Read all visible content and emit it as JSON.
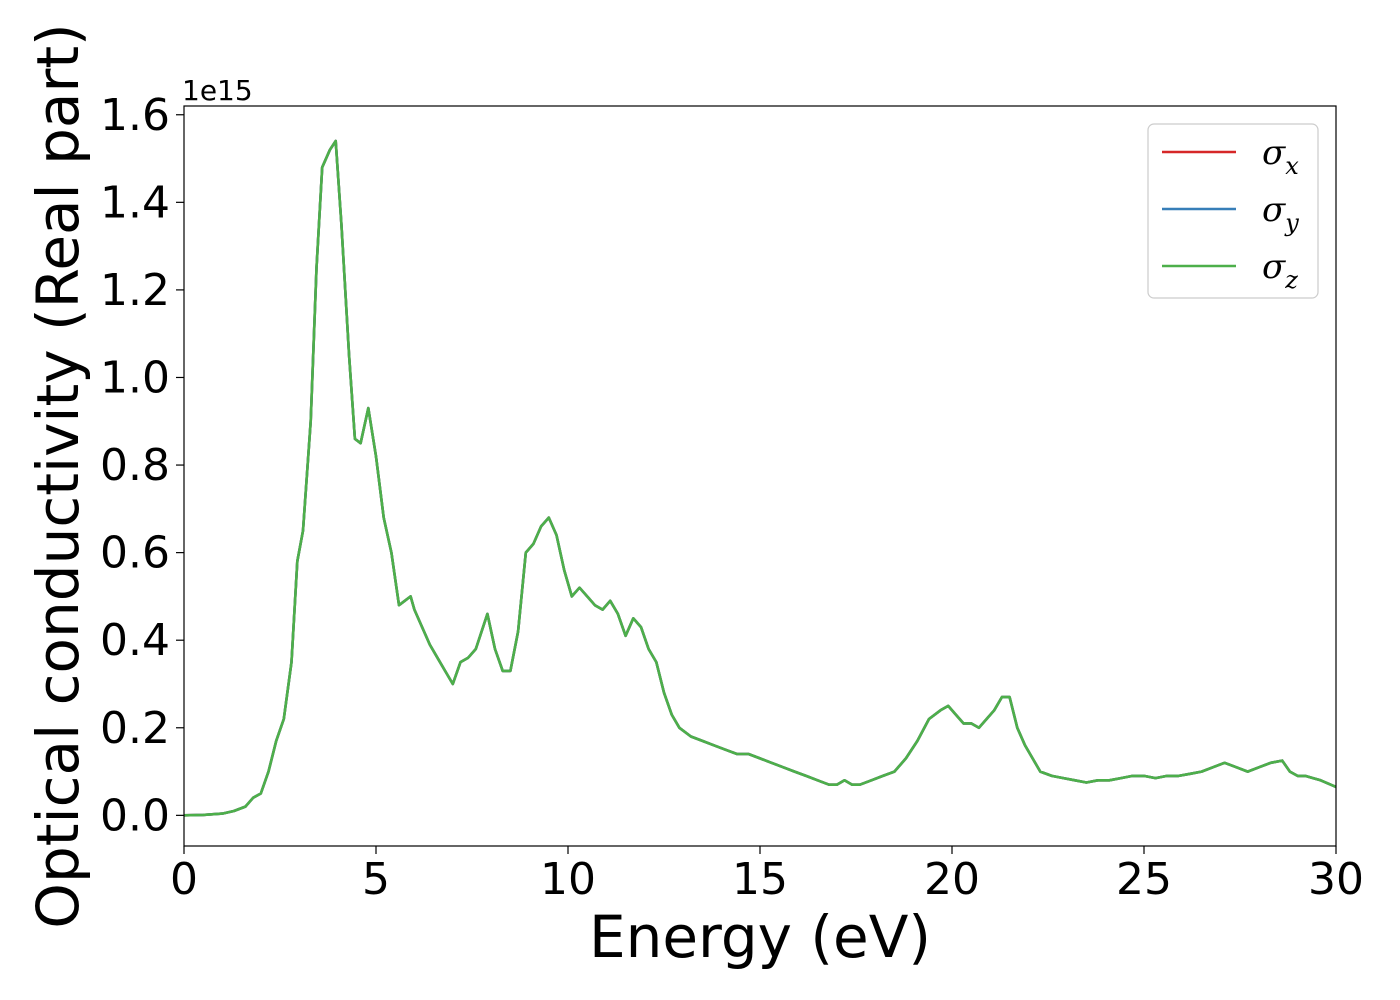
{
  "chart_data": {
    "type": "line",
    "title": "",
    "xlabel": "Energy (eV)",
    "ylabel": "Optical conductivity (Real part)",
    "offset_text": "1e15",
    "y_scale_factor": 1000000000000000.0,
    "xlim": [
      0,
      30
    ],
    "ylim": [
      -0.07,
      1.62
    ],
    "x_ticks": [
      0,
      5,
      10,
      15,
      20,
      25,
      30
    ],
    "x_tick_labels": [
      "0",
      "5",
      "10",
      "15",
      "20",
      "25",
      "30"
    ],
    "y_ticks": [
      0.0,
      0.2,
      0.4,
      0.6,
      0.8,
      1.0,
      1.2,
      1.4,
      1.6
    ],
    "y_tick_labels": [
      "0.0",
      "0.2",
      "0.4",
      "0.6",
      "0.8",
      "1.0",
      "1.2",
      "1.4",
      "1.6"
    ],
    "grid": false,
    "legend": {
      "position": "top-right",
      "entries": [
        {
          "symbol": "σ",
          "sub": "x",
          "color": "#d62728"
        },
        {
          "symbol": "σ",
          "sub": "y",
          "color": "#377eb8"
        },
        {
          "symbol": "σ",
          "sub": "z",
          "color": "#4daf4a"
        }
      ]
    },
    "x": [
      0,
      0.5,
      1.0,
      1.3,
      1.6,
      1.8,
      2.0,
      2.2,
      2.4,
      2.6,
      2.8,
      2.95,
      3.1,
      3.3,
      3.45,
      3.6,
      3.8,
      3.95,
      4.1,
      4.3,
      4.45,
      4.6,
      4.8,
      5.0,
      5.2,
      5.4,
      5.6,
      5.75,
      5.9,
      6.0,
      6.2,
      6.4,
      6.6,
      6.8,
      7.0,
      7.2,
      7.4,
      7.6,
      7.9,
      8.1,
      8.3,
      8.5,
      8.7,
      8.9,
      9.1,
      9.3,
      9.5,
      9.7,
      9.9,
      10.1,
      10.3,
      10.5,
      10.7,
      10.9,
      11.1,
      11.3,
      11.5,
      11.7,
      11.9,
      12.1,
      12.3,
      12.5,
      12.7,
      12.9,
      13.2,
      13.5,
      13.8,
      14.1,
      14.4,
      14.7,
      15.0,
      15.3,
      15.6,
      15.9,
      16.2,
      16.5,
      16.8,
      17.0,
      17.2,
      17.4,
      17.6,
      17.9,
      18.2,
      18.5,
      18.8,
      19.1,
      19.4,
      19.7,
      19.9,
      20.1,
      20.3,
      20.5,
      20.7,
      20.9,
      21.1,
      21.3,
      21.5,
      21.7,
      21.9,
      22.1,
      22.3,
      22.6,
      22.9,
      23.2,
      23.5,
      23.8,
      24.1,
      24.4,
      24.7,
      25.0,
      25.3,
      25.6,
      25.9,
      26.2,
      26.5,
      26.8,
      27.1,
      27.4,
      27.7,
      28.0,
      28.3,
      28.6,
      28.8,
      29.0,
      29.2,
      29.4,
      29.6,
      30.0
    ],
    "series": [
      {
        "name": "σ_x",
        "color": "#d62728",
        "values": [
          0.0,
          0.001,
          0.004,
          0.01,
          0.02,
          0.04,
          0.05,
          0.1,
          0.17,
          0.22,
          0.35,
          0.58,
          0.65,
          0.9,
          1.25,
          1.48,
          1.52,
          1.54,
          1.35,
          1.05,
          0.86,
          0.85,
          0.93,
          0.82,
          0.68,
          0.6,
          0.48,
          0.49,
          0.5,
          0.47,
          0.43,
          0.39,
          0.36,
          0.33,
          0.3,
          0.35,
          0.36,
          0.38,
          0.46,
          0.38,
          0.33,
          0.33,
          0.42,
          0.6,
          0.62,
          0.66,
          0.68,
          0.64,
          0.56,
          0.5,
          0.52,
          0.5,
          0.48,
          0.47,
          0.49,
          0.46,
          0.41,
          0.45,
          0.43,
          0.38,
          0.35,
          0.28,
          0.23,
          0.2,
          0.18,
          0.17,
          0.16,
          0.15,
          0.14,
          0.14,
          0.13,
          0.12,
          0.11,
          0.1,
          0.09,
          0.08,
          0.07,
          0.07,
          0.08,
          0.07,
          0.07,
          0.08,
          0.09,
          0.1,
          0.13,
          0.17,
          0.22,
          0.24,
          0.25,
          0.23,
          0.21,
          0.21,
          0.2,
          0.22,
          0.24,
          0.27,
          0.27,
          0.2,
          0.16,
          0.13,
          0.1,
          0.09,
          0.085,
          0.08,
          0.075,
          0.08,
          0.08,
          0.085,
          0.09,
          0.09,
          0.085,
          0.09,
          0.09,
          0.095,
          0.1,
          0.11,
          0.12,
          0.11,
          0.1,
          0.11,
          0.12,
          0.125,
          0.1,
          0.09,
          0.09,
          0.085,
          0.08,
          0.065
        ]
      },
      {
        "name": "σ_y",
        "color": "#377eb8",
        "values": [
          0.0,
          0.001,
          0.004,
          0.01,
          0.02,
          0.04,
          0.05,
          0.1,
          0.17,
          0.22,
          0.35,
          0.58,
          0.65,
          0.9,
          1.25,
          1.48,
          1.52,
          1.54,
          1.35,
          1.05,
          0.86,
          0.85,
          0.93,
          0.82,
          0.68,
          0.6,
          0.48,
          0.49,
          0.5,
          0.47,
          0.43,
          0.39,
          0.36,
          0.33,
          0.3,
          0.35,
          0.36,
          0.38,
          0.46,
          0.38,
          0.33,
          0.33,
          0.42,
          0.6,
          0.62,
          0.66,
          0.68,
          0.64,
          0.56,
          0.5,
          0.52,
          0.5,
          0.48,
          0.47,
          0.49,
          0.46,
          0.41,
          0.45,
          0.43,
          0.38,
          0.35,
          0.28,
          0.23,
          0.2,
          0.18,
          0.17,
          0.16,
          0.15,
          0.14,
          0.14,
          0.13,
          0.12,
          0.11,
          0.1,
          0.09,
          0.08,
          0.07,
          0.07,
          0.08,
          0.07,
          0.07,
          0.08,
          0.09,
          0.1,
          0.13,
          0.17,
          0.22,
          0.24,
          0.25,
          0.23,
          0.21,
          0.21,
          0.2,
          0.22,
          0.24,
          0.27,
          0.27,
          0.2,
          0.16,
          0.13,
          0.1,
          0.09,
          0.085,
          0.08,
          0.075,
          0.08,
          0.08,
          0.085,
          0.09,
          0.09,
          0.085,
          0.09,
          0.09,
          0.095,
          0.1,
          0.11,
          0.12,
          0.11,
          0.1,
          0.11,
          0.12,
          0.125,
          0.1,
          0.09,
          0.09,
          0.085,
          0.08,
          0.065
        ]
      },
      {
        "name": "σ_z",
        "color": "#4daf4a",
        "values": [
          0.0,
          0.001,
          0.004,
          0.01,
          0.02,
          0.04,
          0.05,
          0.1,
          0.17,
          0.22,
          0.35,
          0.58,
          0.65,
          0.9,
          1.25,
          1.48,
          1.52,
          1.54,
          1.35,
          1.05,
          0.86,
          0.85,
          0.93,
          0.82,
          0.68,
          0.6,
          0.48,
          0.49,
          0.5,
          0.47,
          0.43,
          0.39,
          0.36,
          0.33,
          0.3,
          0.35,
          0.36,
          0.38,
          0.46,
          0.38,
          0.33,
          0.33,
          0.42,
          0.6,
          0.62,
          0.66,
          0.68,
          0.64,
          0.56,
          0.5,
          0.52,
          0.5,
          0.48,
          0.47,
          0.49,
          0.46,
          0.41,
          0.45,
          0.43,
          0.38,
          0.35,
          0.28,
          0.23,
          0.2,
          0.18,
          0.17,
          0.16,
          0.15,
          0.14,
          0.14,
          0.13,
          0.12,
          0.11,
          0.1,
          0.09,
          0.08,
          0.07,
          0.07,
          0.08,
          0.07,
          0.07,
          0.08,
          0.09,
          0.1,
          0.13,
          0.17,
          0.22,
          0.24,
          0.25,
          0.23,
          0.21,
          0.21,
          0.2,
          0.22,
          0.24,
          0.27,
          0.27,
          0.2,
          0.16,
          0.13,
          0.1,
          0.09,
          0.085,
          0.08,
          0.075,
          0.08,
          0.08,
          0.085,
          0.09,
          0.09,
          0.085,
          0.09,
          0.09,
          0.095,
          0.1,
          0.11,
          0.12,
          0.11,
          0.1,
          0.11,
          0.12,
          0.125,
          0.1,
          0.09,
          0.09,
          0.085,
          0.08,
          0.065
        ]
      }
    ]
  }
}
